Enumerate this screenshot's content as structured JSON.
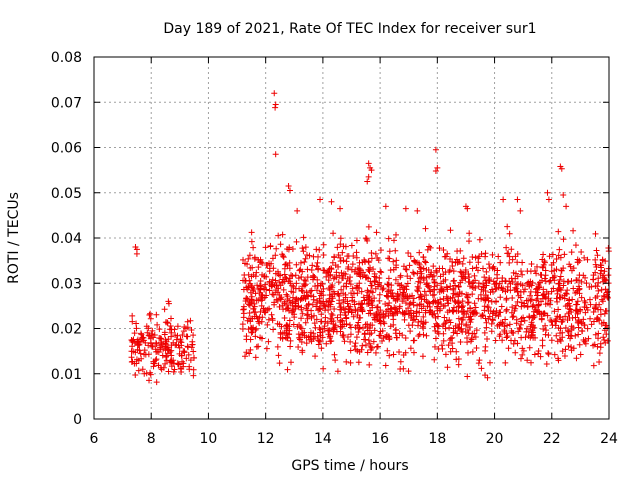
{
  "chart_data": {
    "type": "scatter",
    "title": "Day 189 of 2021, Rate Of TEC Index for receiver sur1",
    "xlabel": "GPS time / hours",
    "ylabel": "ROTI / TECUs",
    "xlim": [
      6,
      24
    ],
    "ylim": [
      0,
      0.08
    ],
    "xticks": [
      "6",
      "8",
      "10",
      "12",
      "14",
      "16",
      "18",
      "20",
      "22",
      "24"
    ],
    "yticks": [
      "0",
      "0.01",
      "0.02",
      "0.03",
      "0.04",
      "0.05",
      "0.06",
      "0.07",
      "0.08"
    ],
    "grid": true,
    "marker": "plus",
    "color": "#ee0000",
    "clusters": [
      {
        "x_range": [
          7.3,
          9.5
        ],
        "y_range": [
          0.006,
          0.026
        ],
        "count": 200
      },
      {
        "x_range": [
          11.2,
          24.0
        ],
        "y_range": [
          0.007,
          0.045
        ],
        "count": 1900
      }
    ],
    "outliers": [
      [
        7.45,
        0.038
      ],
      [
        7.5,
        0.0375
      ],
      [
        7.5,
        0.0365
      ],
      [
        8.6,
        0.026
      ],
      [
        8.62,
        0.0255
      ],
      [
        12.3,
        0.072
      ],
      [
        12.35,
        0.0695
      ],
      [
        12.33,
        0.0688
      ],
      [
        12.35,
        0.0585
      ],
      [
        12.8,
        0.0515
      ],
      [
        12.85,
        0.0505
      ],
      [
        13.1,
        0.046
      ],
      [
        13.9,
        0.0485
      ],
      [
        14.3,
        0.048
      ],
      [
        14.6,
        0.0465
      ],
      [
        15.6,
        0.0565
      ],
      [
        15.65,
        0.0555
      ],
      [
        15.7,
        0.055
      ],
      [
        15.6,
        0.0535
      ],
      [
        15.55,
        0.0525
      ],
      [
        16.2,
        0.047
      ],
      [
        16.9,
        0.0465
      ],
      [
        17.3,
        0.046
      ],
      [
        17.95,
        0.0595
      ],
      [
        18.0,
        0.0555
      ],
      [
        17.95,
        0.0548
      ],
      [
        19.0,
        0.047
      ],
      [
        19.05,
        0.0465
      ],
      [
        20.3,
        0.0485
      ],
      [
        20.8,
        0.0485
      ],
      [
        20.9,
        0.046
      ],
      [
        21.85,
        0.05
      ],
      [
        21.9,
        0.0485
      ],
      [
        22.3,
        0.0558
      ],
      [
        22.35,
        0.0553
      ],
      [
        22.4,
        0.0495
      ],
      [
        22.5,
        0.047
      ]
    ]
  }
}
